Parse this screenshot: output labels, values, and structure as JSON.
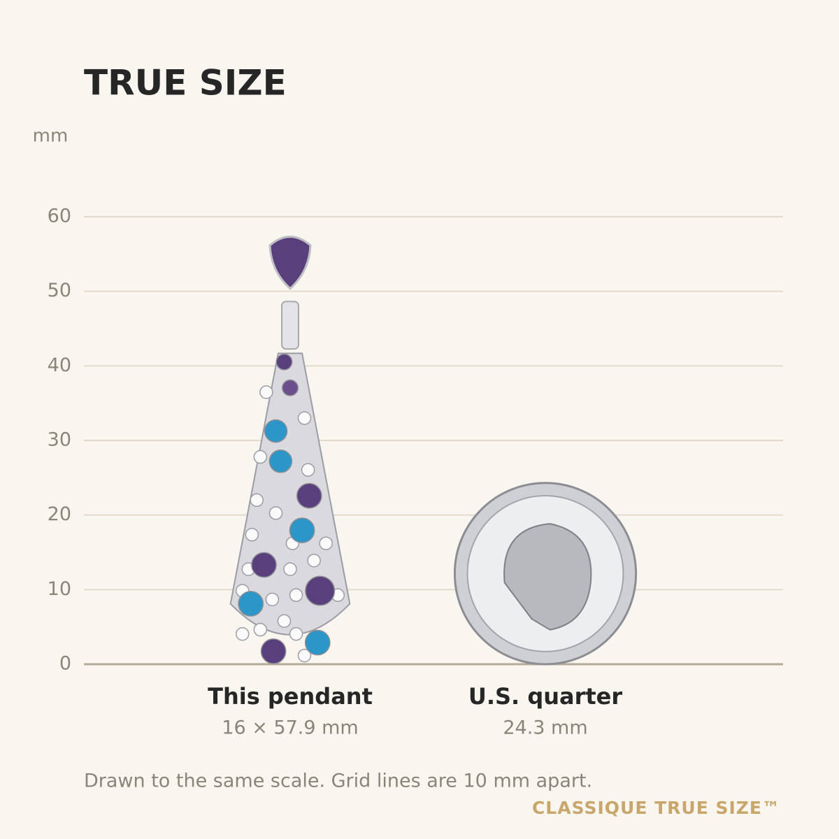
{
  "chart_data": {
    "type": "size-comparison",
    "title": "TRUE SIZE",
    "y_label": "mm",
    "categories": [
      "This pendant",
      "U.S. quarter"
    ],
    "values": [
      57.9,
      24.3
    ],
    "widths": [
      16,
      24.3
    ],
    "value_labels": [
      "16 × 57.9 mm",
      "24.3 mm"
    ],
    "ylim": [
      0,
      60
    ],
    "yticks": [
      0,
      10,
      20,
      30,
      40,
      50,
      60
    ],
    "grid": true,
    "note": "Drawn to the same scale. Grid lines are 10 mm apart.",
    "brand": "CLASSIQUE TRUE SIZE™"
  }
}
